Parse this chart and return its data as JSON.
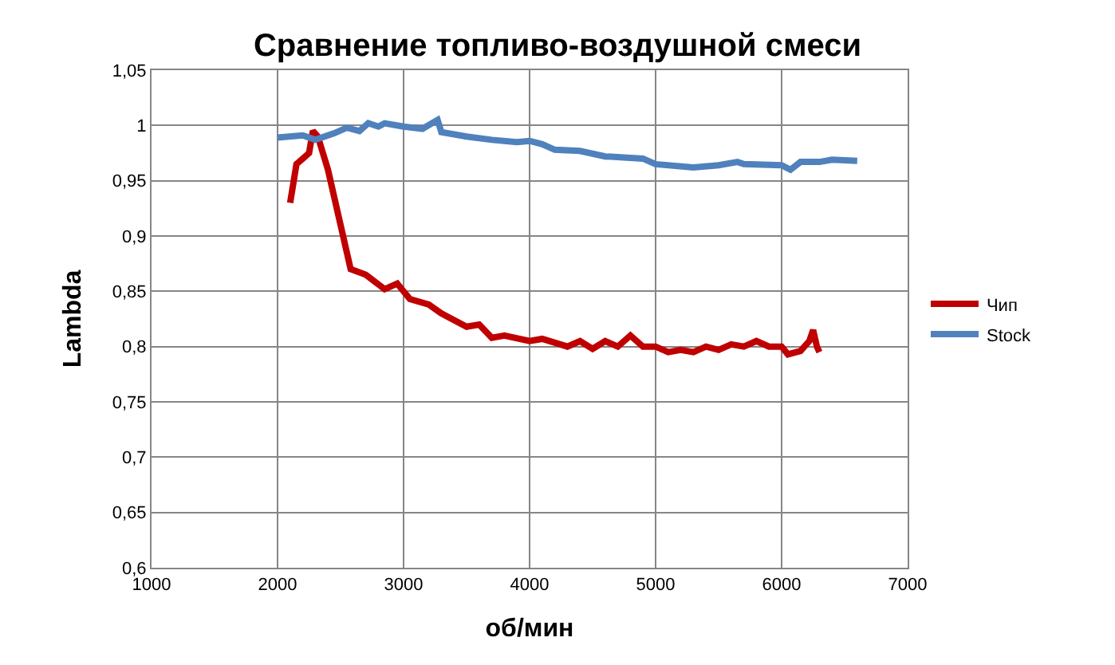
{
  "chart_data": {
    "type": "line",
    "title": "Сравнение топливо-воздушной смеси",
    "xlabel": "об/мин",
    "ylabel": "Lambda",
    "xlim": [
      1000,
      7000
    ],
    "xticks": [
      1000,
      2000,
      3000,
      4000,
      5000,
      6000,
      7000
    ],
    "ylim": [
      0.6,
      1.05
    ],
    "yticks": [
      {
        "value": 0.6,
        "label": "0,6"
      },
      {
        "value": 0.65,
        "label": "0,65"
      },
      {
        "value": 0.7,
        "label": "0,7"
      },
      {
        "value": 0.75,
        "label": "0,75"
      },
      {
        "value": 0.8,
        "label": "0,8"
      },
      {
        "value": 0.85,
        "label": "0,85"
      },
      {
        "value": 0.9,
        "label": "0,9"
      },
      {
        "value": 0.95,
        "label": "0,95"
      },
      {
        "value": 1,
        "label": "1"
      },
      {
        "value": 1.05,
        "label": "1,05"
      }
    ],
    "grid": true,
    "legend": "right",
    "marker": "none",
    "line_style": "solid",
    "series": [
      {
        "name": "Чип",
        "color": "#c00000",
        "x": [
          2100,
          2150,
          2200,
          2250,
          2280,
          2320,
          2400,
          2500,
          2580,
          2700,
          2850,
          2950,
          3050,
          3200,
          3300,
          3500,
          3600,
          3700,
          3800,
          4000,
          4100,
          4300,
          4400,
          4500,
          4600,
          4700,
          4800,
          4900,
          5000,
          5100,
          5200,
          5300,
          5400,
          5500,
          5600,
          5700,
          5800,
          5900,
          6000,
          6050,
          6150,
          6220,
          6250,
          6280,
          6300
        ],
        "values": [
          0.93,
          0.965,
          0.97,
          0.975,
          0.995,
          0.99,
          0.96,
          0.91,
          0.87,
          0.865,
          0.852,
          0.857,
          0.843,
          0.838,
          0.83,
          0.818,
          0.82,
          0.808,
          0.81,
          0.805,
          0.807,
          0.8,
          0.805,
          0.798,
          0.805,
          0.8,
          0.81,
          0.8,
          0.8,
          0.795,
          0.797,
          0.795,
          0.8,
          0.797,
          0.802,
          0.8,
          0.805,
          0.8,
          0.8,
          0.793,
          0.796,
          0.805,
          0.815,
          0.8,
          0.795
        ]
      },
      {
        "name": "Stock",
        "color": "#4f81bd",
        "x": [
          2000,
          2200,
          2300,
          2450,
          2550,
          2650,
          2720,
          2800,
          2850,
          3000,
          3150,
          3270,
          3300,
          3500,
          3700,
          3900,
          4000,
          4100,
          4200,
          4400,
          4600,
          4900,
          5000,
          5300,
          5500,
          5650,
          5700,
          6000,
          6070,
          6150,
          6300,
          6400,
          6600
        ],
        "values": [
          0.989,
          0.991,
          0.987,
          0.993,
          0.998,
          0.995,
          1.002,
          0.999,
          1.002,
          0.999,
          0.997,
          1.005,
          0.994,
          0.99,
          0.987,
          0.985,
          0.986,
          0.983,
          0.978,
          0.977,
          0.972,
          0.97,
          0.965,
          0.962,
          0.964,
          0.967,
          0.965,
          0.964,
          0.96,
          0.967,
          0.967,
          0.969,
          0.968
        ]
      }
    ]
  }
}
